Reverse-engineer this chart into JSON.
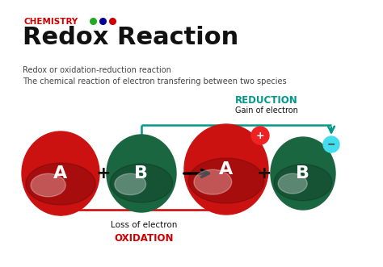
{
  "title": "Redox Reaction",
  "chemistry_label": "CHEMISTRY",
  "dot_colors": [
    "#22aa22",
    "#000099",
    "#cc0000"
  ],
  "subtitle1": "Redox or oxidation-reduction reaction",
  "subtitle2": "The chemical reaction of electron transfering between two species",
  "reduction_label": "REDUCTION",
  "reduction_sublabel": "Gain of electron",
  "oxidation_label": "OXIDATION",
  "oxidation_sublabel": "Loss of electron",
  "reduction_color": "#009988",
  "oxidation_color": "#cc0000",
  "circle_A_left_color": "#cc1111",
  "circle_B_left_color": "#1a6640",
  "circle_A_right_color": "#cc1111",
  "circle_B_right_color": "#1a6640",
  "plus_bubble_color": "#ee2222",
  "minus_bubble_color": "#44ddee",
  "background_color": "#ffffff",
  "text_dark": "#111111",
  "text_gray": "#444444"
}
